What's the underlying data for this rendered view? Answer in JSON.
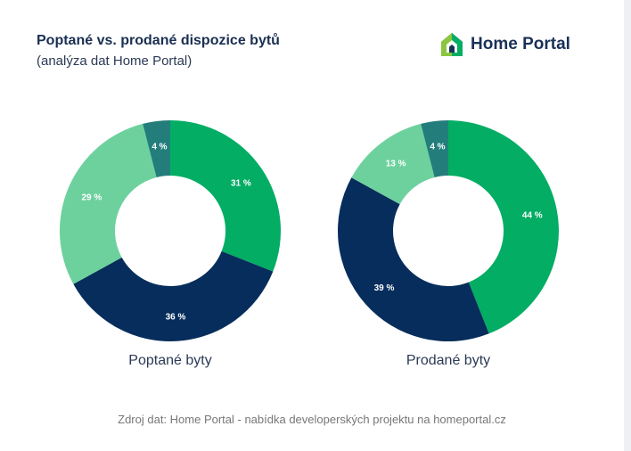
{
  "header": {
    "title": "Poptané vs. prodané dispozice bytů",
    "subtitle": "(analýza dat Home Portal)"
  },
  "logo": {
    "text": "Home Portal",
    "icon": "house-logo-icon"
  },
  "source": "Zdroj dat: Home Portal - nabídka developerských projektu na homeportal.cz",
  "colors": {
    "green": "#03ad64",
    "navy": "#062d5b",
    "light_green": "#6dd19e",
    "teal": "#237e7b"
  },
  "chart_data": [
    {
      "type": "pie",
      "donut": true,
      "title": "Poptané byty",
      "slices": [
        {
          "value": 31,
          "label": "31 %",
          "color": "#03ad64"
        },
        {
          "value": 36,
          "label": "36 %",
          "color": "#062d5b"
        },
        {
          "value": 29,
          "label": "29 %",
          "color": "#6dd19e"
        },
        {
          "value": 4,
          "label": "4 %",
          "color": "#237e7b"
        }
      ]
    },
    {
      "type": "pie",
      "donut": true,
      "title": "Prodané byty",
      "slices": [
        {
          "value": 44,
          "label": "44 %",
          "color": "#03ad64"
        },
        {
          "value": 39,
          "label": "39 %",
          "color": "#062d5b"
        },
        {
          "value": 13,
          "label": "13 %",
          "color": "#6dd19e"
        },
        {
          "value": 4,
          "label": "4 %",
          "color": "#237e7b"
        }
      ]
    }
  ]
}
